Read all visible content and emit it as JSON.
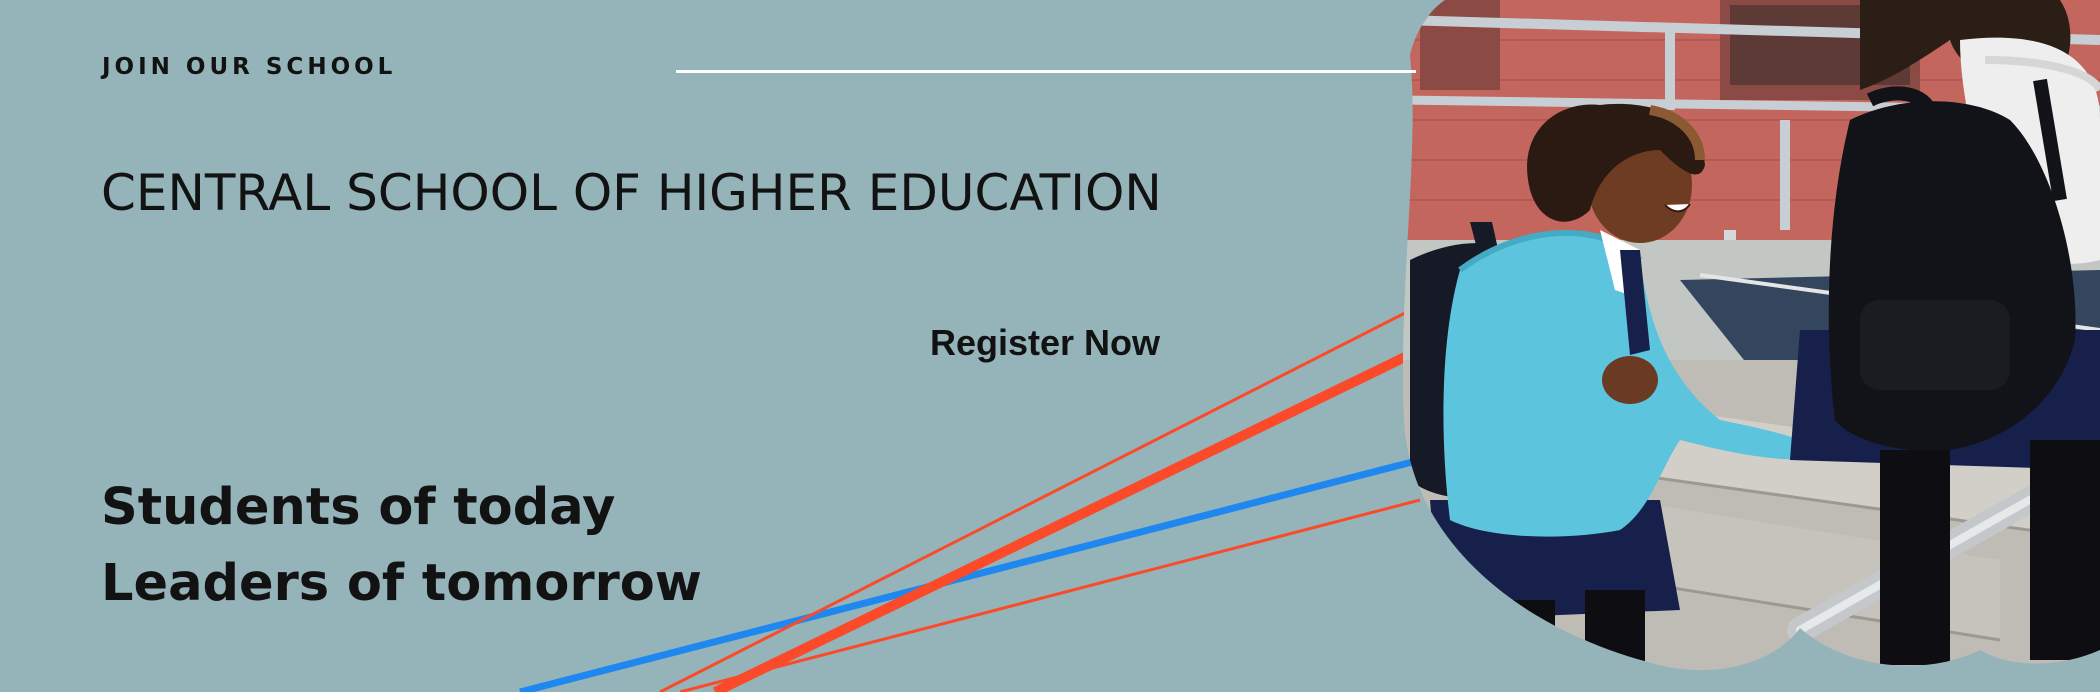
{
  "banner": {
    "kicker": "JOIN OUR SCHOOL",
    "title": "CENTRAL SCHOOL OF HIGHER EDUCATION",
    "cta_label": "Register Now",
    "tagline": [
      "Students of today",
      "Leaders of tomorrow"
    ]
  },
  "photo": {
    "description_icon": "students-walking-photo"
  },
  "colors": {
    "background": "#95b4ba",
    "text": "#121212",
    "accent_red": "#fa4a2a",
    "accent_blue": "#1e88f0",
    "rule": "#ffffff"
  }
}
